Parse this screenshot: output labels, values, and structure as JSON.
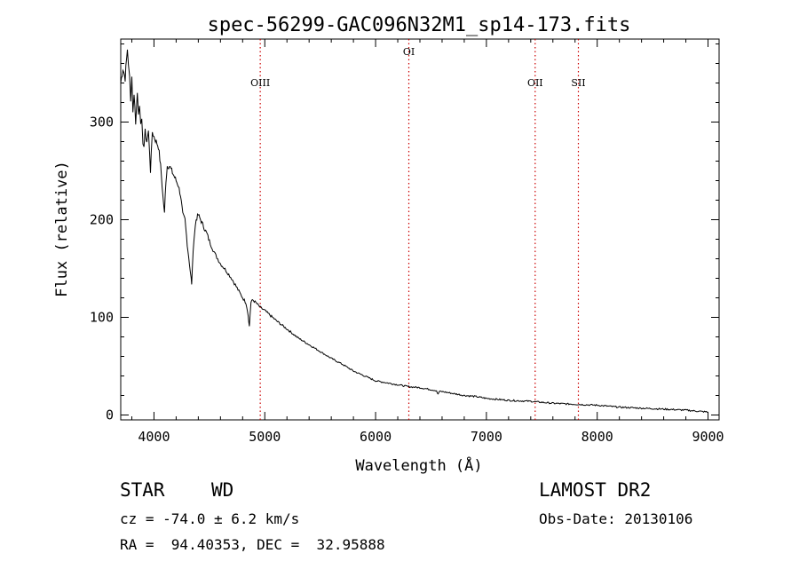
{
  "chart_data": {
    "type": "line",
    "title": "spec-56299-GAC096N32M1_sp14-173.fits",
    "xlabel": "Wavelength (Å)",
    "ylabel": "Flux (relative)",
    "xlim": [
      3700,
      9100
    ],
    "ylim": [
      -5,
      385
    ],
    "xticks": [
      4000,
      5000,
      6000,
      7000,
      8000,
      9000
    ],
    "xtick_labels": [
      "4000",
      "5000",
      "6000",
      "7000",
      "8000",
      "9000"
    ],
    "yticks": [
      0,
      100,
      200,
      300
    ],
    "ytick_labels": [
      "0",
      "100",
      "200",
      "300"
    ],
    "grid": false,
    "series": [
      {
        "x": [
          3700,
          3720,
          3740,
          3760,
          3770,
          3780,
          3790,
          3800,
          3810,
          3820,
          3835,
          3850,
          3860,
          3870,
          3880,
          3890,
          3900,
          3910,
          3920,
          3935,
          3950,
          3960,
          3968,
          3975,
          3985,
          4000,
          4020,
          4040,
          4060,
          4080,
          4095,
          4101,
          4108,
          4120,
          4140,
          4160,
          4180,
          4200,
          4220,
          4240,
          4260,
          4280,
          4300,
          4320,
          4335,
          4340,
          4346,
          4360,
          4380,
          4400,
          4420,
          4440,
          4460,
          4480,
          4500,
          4550,
          4600,
          4650,
          4700,
          4750,
          4800,
          4830,
          4850,
          4855,
          4861,
          4867,
          4875,
          4890,
          4920,
          4960,
          5000,
          5100,
          5200,
          5300,
          5400,
          5500,
          5600,
          5700,
          5800,
          5900,
          6000,
          6100,
          6200,
          6300,
          6400,
          6500,
          6550,
          6563,
          6575,
          6600,
          6700,
          6800,
          6900,
          7000,
          7200,
          7400,
          7600,
          7800,
          8000,
          8200,
          8400,
          8600,
          8800,
          9000
        ],
        "y": [
          340,
          355,
          345,
          375,
          360,
          345,
          320,
          350,
          310,
          330,
          300,
          330,
          310,
          320,
          295,
          300,
          280,
          275,
          290,
          280,
          290,
          270,
          250,
          265,
          290,
          285,
          280,
          275,
          255,
          225,
          206,
          225,
          240,
          255,
          255,
          250,
          245,
          240,
          235,
          225,
          205,
          200,
          175,
          155,
          140,
          133,
          150,
          180,
          200,
          205,
          200,
          195,
          190,
          185,
          178,
          165,
          155,
          148,
          140,
          130,
          120,
          115,
          103,
          95,
          91,
          103,
          115,
          118,
          115,
          110,
          107,
          97,
          88,
          79,
          72,
          65,
          58,
          52,
          45,
          40,
          35,
          33,
          31,
          29,
          28,
          26,
          25,
          21,
          24,
          24,
          22,
          20,
          19,
          17,
          15,
          14,
          12,
          11,
          10,
          8,
          7,
          6,
          5,
          3
        ]
      }
    ],
    "line_markers": [
      {
        "label": "OIII",
        "x": 4959
      },
      {
        "label": "OI",
        "x": 6300
      },
      {
        "label": "OII",
        "x": 7440
      },
      {
        "label": "SII",
        "x": 7830
      }
    ],
    "line_color": "#000000",
    "marker_color": "#cc0000"
  },
  "info": {
    "class_label": "STAR",
    "subclass_label": "WD",
    "cz": "cz = -74.0 ± 6.2 km/s",
    "coords": "RA =  94.40353, DEC =  32.95888",
    "survey": "LAMOST DR2",
    "obs_date": "Obs-Date: 20130106"
  }
}
